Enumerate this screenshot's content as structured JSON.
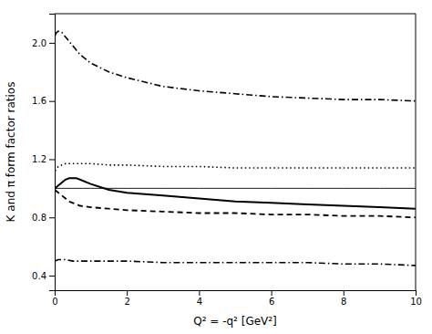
{
  "chart_data": {
    "type": "line",
    "xlabel": "Q² = -q² [GeV²]",
    "ylabel": "K and π form factor ratios",
    "xlim": [
      0,
      10
    ],
    "ylim": [
      0.3,
      2.2
    ],
    "xticks": [
      0,
      2,
      4,
      6,
      8,
      10
    ],
    "yticks": [
      0.4,
      0.8,
      1.2,
      1.6,
      {
        "value": 2.0,
        "label": "2.0"
      }
    ],
    "grid": false,
    "series": [
      {
        "color": "#000000",
        "line_style": "dashdot",
        "x": [
          0.01,
          0.05,
          0.1,
          0.2,
          0.3,
          0.4,
          0.5,
          0.7,
          1.0,
          1.5,
          2.0,
          3.0,
          4.0,
          5.0,
          6.0,
          7.0,
          8.0,
          9.0,
          10.0
        ],
        "values": [
          2.05,
          2.07,
          2.08,
          2.07,
          2.04,
          2.01,
          1.98,
          1.92,
          1.86,
          1.8,
          1.76,
          1.7,
          1.67,
          1.65,
          1.63,
          1.62,
          1.61,
          1.61,
          1.6
        ]
      },
      {
        "color": "#000000",
        "line_style": "dotted",
        "x": [
          0.01,
          0.1,
          0.2,
          0.3,
          0.5,
          0.7,
          1.0,
          1.5,
          2.0,
          3.0,
          4.0,
          5.0,
          6.0,
          7.0,
          8.0,
          9.0,
          10.0
        ],
        "values": [
          1.12,
          1.15,
          1.16,
          1.17,
          1.17,
          1.17,
          1.17,
          1.16,
          1.16,
          1.15,
          1.15,
          1.14,
          1.14,
          1.14,
          1.14,
          1.14,
          1.14
        ]
      },
      {
        "color": "#000000",
        "line_style": "solid",
        "x": [
          0.01,
          0.1,
          0.2,
          0.5,
          1.0,
          2.0,
          3.0,
          4.0,
          5.0,
          6.0,
          7.0,
          8.0,
          9.0,
          10.0
        ],
        "values": [
          1.0,
          1.0,
          1.0,
          1.0,
          1.0,
          1.0,
          1.0,
          1.0,
          1.0,
          1.0,
          1.0,
          1.0,
          1.0,
          1.0
        ]
      },
      {
        "color": "#000000",
        "line_style": "solid",
        "x": [
          0.01,
          0.1,
          0.2,
          0.3,
          0.4,
          0.5,
          0.6,
          0.7,
          1.0,
          1.5,
          2.0,
          3.0,
          4.0,
          5.0,
          6.0,
          7.0,
          8.0,
          9.0,
          10.0
        ],
        "values": [
          1.0,
          1.02,
          1.04,
          1.06,
          1.07,
          1.07,
          1.07,
          1.06,
          1.03,
          0.99,
          0.97,
          0.95,
          0.93,
          0.91,
          0.9,
          0.89,
          0.88,
          0.87,
          0.86
        ]
      },
      {
        "color": "#000000",
        "line_style": "dashed",
        "x": [
          0.01,
          0.05,
          0.1,
          0.2,
          0.3,
          0.4,
          0.5,
          0.7,
          1.0,
          1.5,
          2.0,
          3.0,
          4.0,
          5.0,
          6.0,
          7.0,
          8.0,
          9.0,
          10.0
        ],
        "values": [
          0.99,
          0.98,
          0.97,
          0.95,
          0.93,
          0.91,
          0.9,
          0.88,
          0.87,
          0.86,
          0.85,
          0.84,
          0.83,
          0.83,
          0.82,
          0.82,
          0.81,
          0.81,
          0.8
        ]
      },
      {
        "color": "#000000",
        "line_style": "dashdot",
        "x": [
          0.01,
          0.1,
          0.2,
          0.3,
          0.5,
          0.7,
          1.0,
          1.5,
          2.0,
          3.0,
          4.0,
          5.0,
          6.0,
          7.0,
          8.0,
          9.0,
          10.0
        ],
        "values": [
          0.5,
          0.51,
          0.51,
          0.51,
          0.5,
          0.5,
          0.5,
          0.5,
          0.5,
          0.49,
          0.49,
          0.49,
          0.49,
          0.49,
          0.48,
          0.48,
          0.47
        ]
      }
    ]
  }
}
